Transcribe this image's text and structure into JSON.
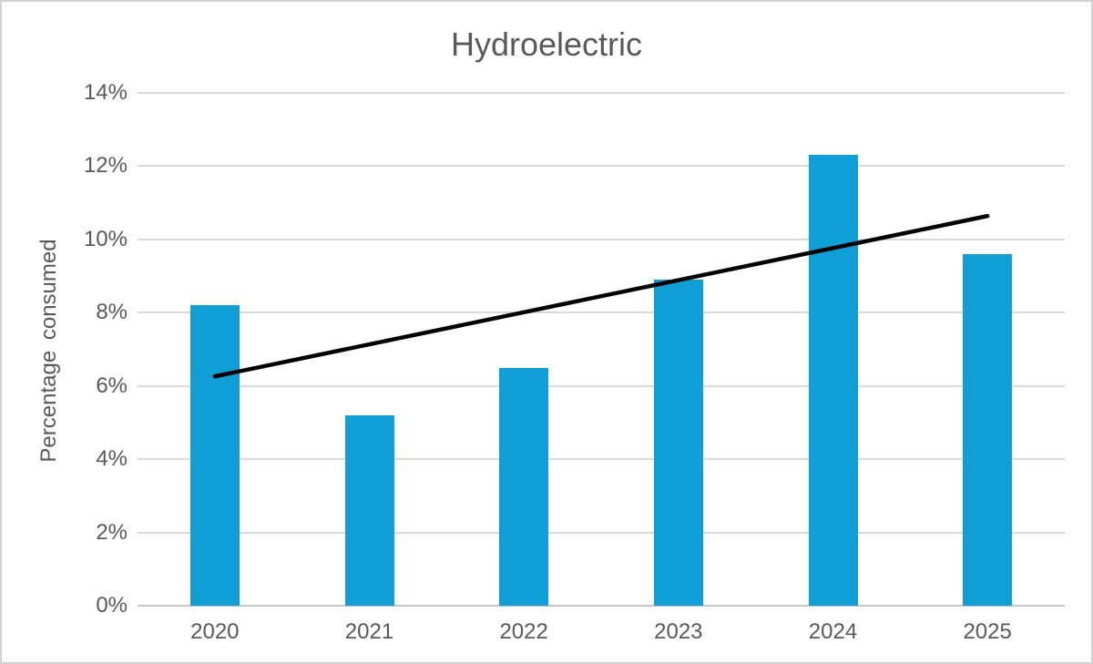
{
  "chart_data": {
    "type": "bar",
    "title": "Hydroelectric",
    "xlabel": "",
    "ylabel": "Percentage consumed",
    "categories": [
      "2020",
      "2021",
      "2022",
      "2023",
      "2024",
      "2025"
    ],
    "values": [
      8.2,
      5.2,
      6.5,
      8.9,
      12.3,
      9.6
    ],
    "value_unit": "%",
    "ylim": [
      0,
      14
    ],
    "ytick_step": 2,
    "ytick_labels": [
      "0%",
      "2%",
      "4%",
      "6%",
      "8%",
      "10%",
      "12%",
      "14%"
    ],
    "grid": true,
    "legend": "none",
    "colors": {
      "bar_fill": "#0f9ed5",
      "trendline": "#000000",
      "gridline": "#d9d9d9",
      "axis_line": "#c6c6c6",
      "text": "#595959",
      "frame_border": "#d1d1d1"
    },
    "trendline": {
      "type": "linear",
      "start_value": 6.26,
      "end_value": 10.64
    }
  }
}
